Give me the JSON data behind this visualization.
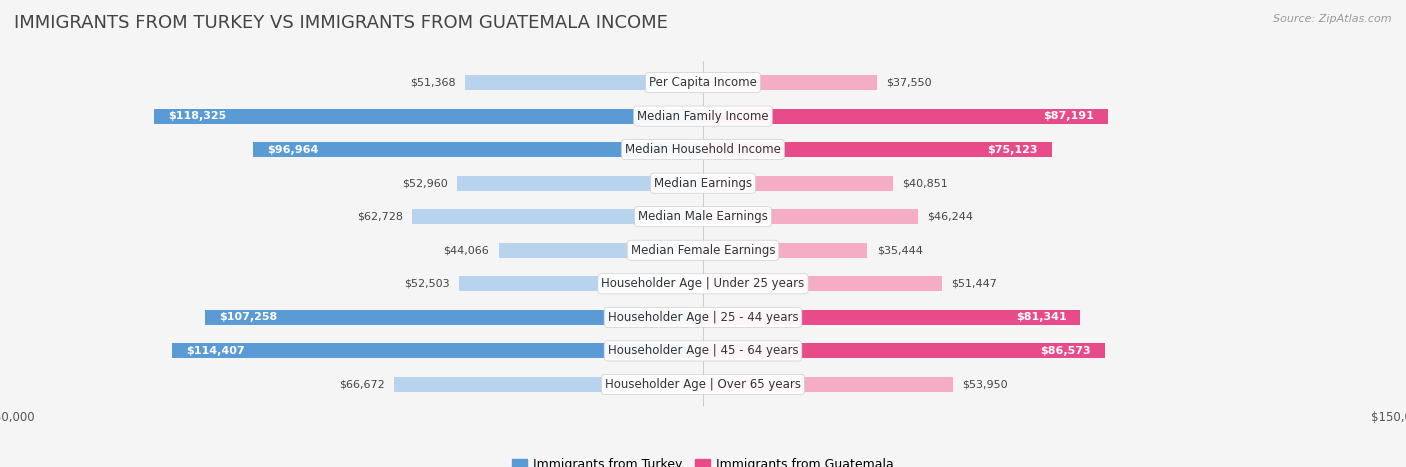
{
  "title": "IMMIGRANTS FROM TURKEY VS IMMIGRANTS FROM GUATEMALA INCOME",
  "source": "Source: ZipAtlas.com",
  "categories": [
    "Per Capita Income",
    "Median Family Income",
    "Median Household Income",
    "Median Earnings",
    "Median Male Earnings",
    "Median Female Earnings",
    "Householder Age | Under 25 years",
    "Householder Age | 25 - 44 years",
    "Householder Age | 45 - 64 years",
    "Householder Age | Over 65 years"
  ],
  "turkey_values": [
    51368,
    118325,
    96964,
    52960,
    62728,
    44066,
    52503,
    107258,
    114407,
    66672
  ],
  "guatemala_values": [
    37550,
    87191,
    75123,
    40851,
    46244,
    35444,
    51447,
    81341,
    86573,
    53950
  ],
  "turkey_color_dark": "#5b9bd5",
  "turkey_color_light": "#b8d3ed",
  "guatemala_color_dark": "#e84b8a",
  "guatemala_color_light": "#f5adc6",
  "turkey_label": "Immigrants from Turkey",
  "guatemala_label": "Immigrants from Guatemala",
  "axis_max": 150000,
  "bg_color": "#f2f2f2",
  "row_color_odd": "#e8e8e8",
  "row_color_even": "#f8f8f8",
  "title_fontsize": 13,
  "label_fontsize": 8.5,
  "value_fontsize": 8.0,
  "legend_fontsize": 9,
  "source_fontsize": 8
}
